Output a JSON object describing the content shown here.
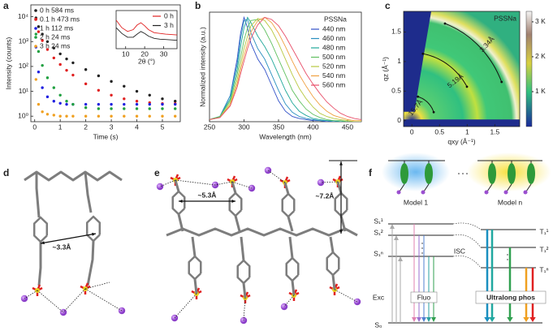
{
  "chart_data": [
    {
      "type": "scatter",
      "panel": "a",
      "xlabel": "Time (s)",
      "ylabel": "Intensity (counts)",
      "log_y": true,
      "legend": "upper left",
      "xlim": [
        -0.15,
        5.7
      ],
      "xticks": [
        0,
        1,
        2,
        3,
        4,
        5
      ],
      "ylim": [
        0.6,
        30000
      ],
      "yticks": [
        {
          "value": 1,
          "label": "10⁰"
        },
        {
          "value": 10,
          "label": "10¹"
        },
        {
          "value": 100,
          "label": "10²"
        },
        {
          "value": 1000,
          "label": "10³"
        },
        {
          "value": 10000,
          "label": "10⁴"
        }
      ],
      "x": [
        0.05,
        0.15,
        0.3,
        0.5,
        0.75,
        1,
        1.25,
        1.5,
        2,
        2.5,
        3,
        3.5,
        4,
        4.5,
        5,
        5.5
      ],
      "series": [
        {
          "name": "0 h 584 ms",
          "color": "#222222",
          "values": [
            9000,
            4000,
            2000,
            1000,
            550,
            320,
            200,
            140,
            75,
            42,
            25,
            16,
            10,
            7,
            5,
            4
          ]
        },
        {
          "name": "0.1 h 473 ms",
          "color": "#e02020",
          "values": [
            8000,
            2500,
            1100,
            480,
            220,
            120,
            70,
            45,
            20,
            11,
            7,
            5,
            4,
            3.5,
            3.2,
            3.2
          ]
        },
        {
          "name": "1 h 112 ms",
          "color": "#2020e0",
          "values": [
            600,
            60,
            14,
            6,
            4,
            3.3,
            3,
            3,
            3,
            3,
            3,
            3,
            3,
            3,
            3,
            3
          ]
        },
        {
          "name": "2 h 24 ms",
          "color": "#20a040",
          "values": [
            2000,
            400,
            110,
            35,
            14,
            7,
            4,
            3,
            2.2,
            2,
            2,
            2,
            2,
            2,
            2,
            2
          ]
        },
        {
          "name": "3 h 24 ms",
          "color": "#f0a020",
          "values": [
            30,
            3,
            1.5,
            1.2,
            1.1,
            1,
            1,
            1,
            1,
            1,
            1,
            1,
            1,
            1,
            1,
            1
          ]
        }
      ]
    },
    {
      "type": "line",
      "xlabel": "2θ (°)",
      "legend": "upper right",
      "xlim": [
        5,
        37
      ],
      "xticks": [
        10,
        20,
        30
      ],
      "ylim": [
        0,
        1
      ],
      "x": [
        5,
        8,
        11,
        14,
        16,
        18,
        20,
        22,
        25,
        28,
        31,
        34,
        37
      ],
      "series": [
        {
          "name": "0 h",
          "color": "#e02020",
          "values": [
            0.75,
            0.55,
            0.45,
            0.5,
            0.62,
            0.68,
            0.6,
            0.5,
            0.42,
            0.4,
            0.38,
            0.37,
            0.36
          ]
        },
        {
          "name": "3 h",
          "color": "#222222",
          "values": [
            0.55,
            0.4,
            0.3,
            0.3,
            0.38,
            0.45,
            0.4,
            0.33,
            0.27,
            0.25,
            0.24,
            0.23,
            0.22
          ]
        }
      ]
    },
    {
      "type": "line",
      "panel": "b",
      "xlabel": "Wavelength (nm)",
      "ylabel": "Normalized intensity (a.u.)",
      "legend": "upper right",
      "legend_title": "PSSNa",
      "xlim": [
        250,
        470
      ],
      "xticks": [
        250,
        300,
        350,
        400,
        450
      ],
      "ylim": [
        0,
        1.05
      ],
      "x": [
        250,
        265,
        280,
        290,
        295,
        300,
        305,
        310,
        320,
        330,
        340,
        350,
        360,
        370,
        380,
        390,
        400,
        410,
        420,
        430,
        440,
        450,
        460,
        470
      ],
      "series": [
        {
          "name": "440 nm",
          "color": "#3050c8",
          "values": [
            0.02,
            0.05,
            0.25,
            0.6,
            0.85,
            1.0,
            0.9,
            0.75,
            0.6,
            0.5,
            0.35,
            0.2,
            0.1,
            0.05,
            0.03,
            0.02,
            0.01,
            0.01,
            0,
            0,
            0,
            0,
            0,
            0
          ]
        },
        {
          "name": "460 nm",
          "color": "#2a8fc0",
          "values": [
            0.02,
            0.05,
            0.25,
            0.55,
            0.8,
            0.97,
            0.98,
            0.85,
            0.7,
            0.6,
            0.45,
            0.3,
            0.17,
            0.09,
            0.05,
            0.03,
            0.02,
            0.01,
            0.01,
            0,
            0,
            0,
            0,
            0
          ]
        },
        {
          "name": "480 nm",
          "color": "#20a89a",
          "values": [
            0.02,
            0.05,
            0.22,
            0.5,
            0.72,
            0.9,
            1.0,
            0.95,
            0.82,
            0.72,
            0.6,
            0.45,
            0.3,
            0.18,
            0.1,
            0.06,
            0.03,
            0.02,
            0.01,
            0.01,
            0,
            0,
            0,
            0
          ]
        },
        {
          "name": "500 nm",
          "color": "#60c060",
          "values": [
            0.02,
            0.05,
            0.2,
            0.45,
            0.62,
            0.78,
            0.9,
            0.97,
            0.98,
            0.88,
            0.75,
            0.6,
            0.45,
            0.3,
            0.2,
            0.12,
            0.07,
            0.04,
            0.02,
            0.01,
            0.01,
            0,
            0,
            0
          ]
        },
        {
          "name": "520 nm",
          "color": "#b8c840",
          "values": [
            0.02,
            0.04,
            0.18,
            0.4,
            0.55,
            0.7,
            0.82,
            0.92,
            0.99,
            0.97,
            0.88,
            0.75,
            0.6,
            0.45,
            0.32,
            0.22,
            0.14,
            0.08,
            0.05,
            0.03,
            0.02,
            0.01,
            0,
            0
          ]
        },
        {
          "name": "540 nm",
          "color": "#f0a040",
          "values": [
            0.02,
            0.04,
            0.16,
            0.36,
            0.5,
            0.63,
            0.75,
            0.86,
            0.97,
            1.0,
            0.95,
            0.85,
            0.72,
            0.58,
            0.45,
            0.34,
            0.24,
            0.16,
            0.1,
            0.06,
            0.04,
            0.02,
            0.01,
            0.01
          ]
        },
        {
          "name": "560 nm",
          "color": "#e8506a",
          "values": [
            0.02,
            0.04,
            0.15,
            0.33,
            0.46,
            0.58,
            0.7,
            0.8,
            0.93,
            1.0,
            0.98,
            0.92,
            0.82,
            0.7,
            0.58,
            0.46,
            0.36,
            0.27,
            0.19,
            0.13,
            0.08,
            0.05,
            0.03,
            0.02
          ]
        }
      ]
    },
    {
      "type": "heatmap",
      "panel": "c",
      "title": "PSSNa",
      "xlabel": "qxy (Å⁻¹)",
      "ylabel": "qz (Å⁻¹)",
      "xlim": [
        -0.15,
        1.95
      ],
      "xticks": [
        0,
        0.5,
        1,
        1.5
      ],
      "ylim": [
        -0.1,
        1.85
      ],
      "yticks": [
        0,
        0.5,
        1,
        1.5
      ],
      "annotations": [
        "3.34Å",
        "5.19Å",
        "15.7Å"
      ],
      "colorbar": {
        "range": [
          0,
          3300
        ],
        "ticks": [
          {
            "value": 1000,
            "label": "1 K"
          },
          {
            "value": 2000,
            "label": "2 K"
          },
          {
            "value": 3000,
            "label": "3 K"
          }
        ]
      }
    }
  ],
  "diagrams": {
    "d": {
      "panel": "d",
      "labels": [
        "~3.3Å"
      ]
    },
    "e": {
      "panel": "e",
      "labels": [
        "~5.3Å",
        "~7.2Å"
      ]
    },
    "f": {
      "panel": "f",
      "models": [
        "Model 1",
        "Model n"
      ],
      "singlets": [
        "S₁¹",
        "S₁²",
        "S₁ⁿ"
      ],
      "triplets": [
        "T₁¹",
        "T₁²",
        "T₁ⁿ"
      ],
      "ground": "S₀",
      "isc": "ISC",
      "exc": "Exc",
      "fluo": "Fluo",
      "phos": "Ultralong phos"
    }
  }
}
